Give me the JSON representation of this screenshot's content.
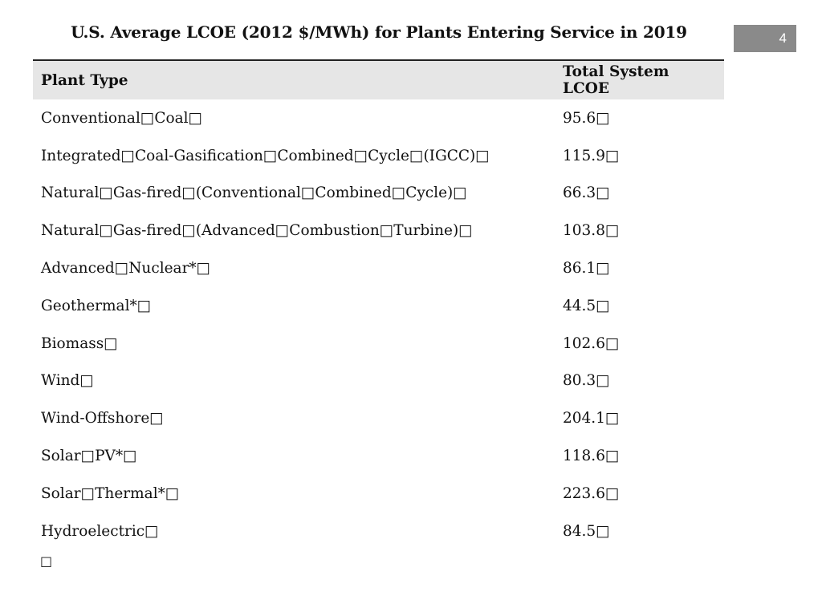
{
  "slide": {
    "title": "U.S. Average LCOE (2012 $/MWh) for Plants Entering Service in 2019",
    "page_number": "4",
    "trailing_glyph": "□"
  },
  "table": {
    "headers": [
      "Plant Type",
      "Total System LCOE"
    ],
    "rows": [
      {
        "type": "Conventional□Coal□",
        "lcoe": "95.6□"
      },
      {
        "type": "Integrated□Coal-Gasification□Combined□Cycle□(IGCC)□",
        "lcoe": "115.9□"
      },
      {
        "type": "Natural□Gas-fired□(Conventional□Combined□Cycle)□",
        "lcoe": "66.3□"
      },
      {
        "type": "Natural□Gas-fired□(Advanced□Combustion□Turbine)□",
        "lcoe": "103.8□"
      },
      {
        "type": "Advanced□Nuclear*□",
        "lcoe": "86.1□"
      },
      {
        "type": "Geothermal*□",
        "lcoe": "44.5□"
      },
      {
        "type": "Biomass□",
        "lcoe": "102.6□"
      },
      {
        "type": "Wind□",
        "lcoe": "80.3□"
      },
      {
        "type": "Wind-Offshore□",
        "lcoe": "204.1□"
      },
      {
        "type": "Solar□PV*□",
        "lcoe": "118.6□"
      },
      {
        "type": "Solar□Thermal*□",
        "lcoe": "223.6□"
      },
      {
        "type": "Hydroelectric□",
        "lcoe": "84.5□"
      }
    ]
  }
}
